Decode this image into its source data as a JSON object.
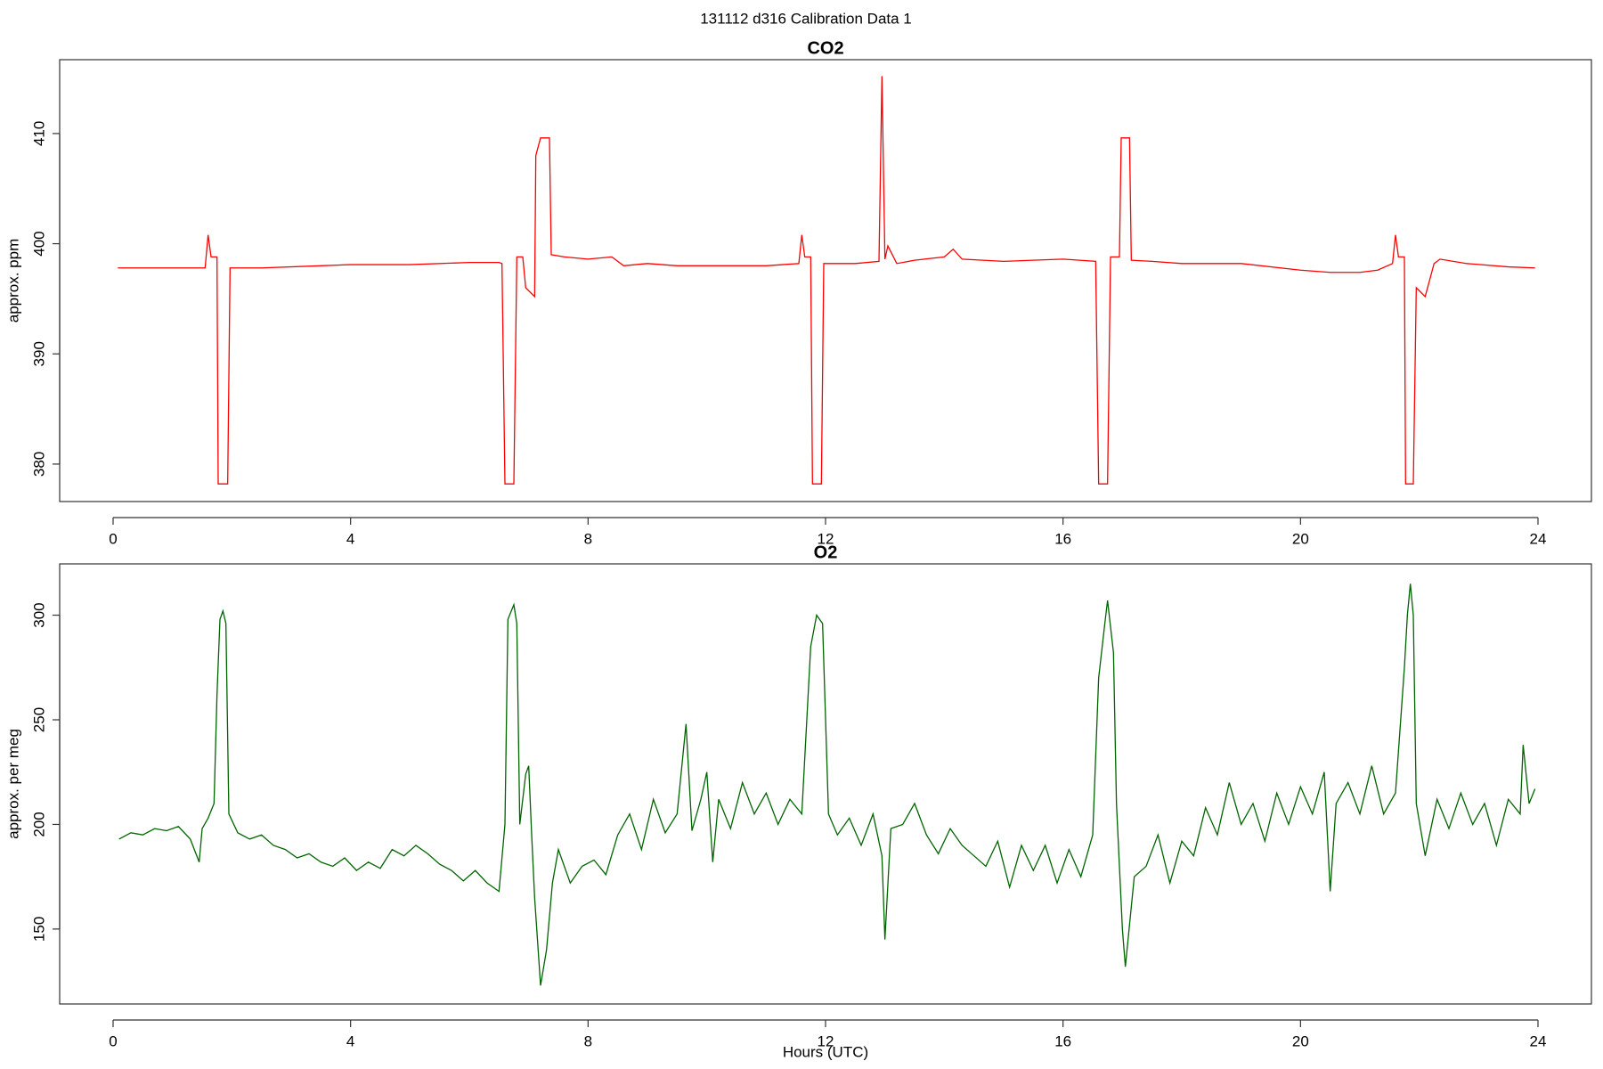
{
  "title": "131112   d316   Calibration Data 1",
  "chart_data": [
    {
      "type": "line",
      "title": "CO2",
      "ylabel": "approx. ppm",
      "x": [
        0.08,
        0.5,
        1.0,
        1.55,
        1.6,
        1.65,
        1.75,
        1.77,
        1.93,
        1.97,
        2.5,
        3.5,
        4.0,
        5.0,
        6.0,
        6.5,
        6.55,
        6.6,
        6.75,
        6.8,
        6.9,
        6.95,
        7.1,
        7.12,
        7.2,
        7.35,
        7.38,
        7.6,
        8.0,
        8.4,
        8.6,
        9.0,
        9.5,
        10.5,
        11.0,
        11.55,
        11.6,
        11.65,
        11.75,
        11.78,
        11.93,
        11.97,
        12.5,
        12.9,
        12.95,
        13.0,
        13.05,
        13.2,
        13.5,
        14.0,
        14.15,
        14.3,
        15.0,
        16.0,
        16.55,
        16.6,
        16.75,
        16.8,
        16.95,
        16.98,
        17.12,
        17.15,
        17.5,
        18.0,
        19.0,
        20.0,
        20.5,
        21.0,
        21.3,
        21.55,
        21.6,
        21.65,
        21.75,
        21.77,
        21.9,
        21.95,
        22.1,
        22.25,
        22.35,
        22.8,
        23.5,
        23.95
      ],
      "series": [
        {
          "color": "#ff0000",
          "values": [
            397.8,
            397.8,
            397.8,
            397.8,
            400.8,
            398.8,
            398.8,
            378.2,
            378.2,
            397.8,
            397.8,
            398.0,
            398.1,
            398.1,
            398.3,
            398.3,
            398.2,
            378.2,
            378.2,
            398.8,
            398.8,
            396,
            395.2,
            408,
            409.6,
            409.6,
            399,
            398.8,
            398.6,
            398.8,
            398,
            398.2,
            398,
            398,
            398,
            398.2,
            400.8,
            398.8,
            398.8,
            378.2,
            378.2,
            398.2,
            398.2,
            398.4,
            415.2,
            398.6,
            399.8,
            398.2,
            398.5,
            398.8,
            399.5,
            398.6,
            398.4,
            398.6,
            398.4,
            378.2,
            378.2,
            398.8,
            398.8,
            409.6,
            409.6,
            398.5,
            398.4,
            398.2,
            398.2,
            397.6,
            397.4,
            397.4,
            397.6,
            398.2,
            400.8,
            398.8,
            398.8,
            378.2,
            378.2,
            396,
            395.2,
            398.2,
            398.6,
            398.2,
            397.9,
            397.8
          ]
        }
      ],
      "xlim": [
        -0.9,
        24.9
      ],
      "ylim": [
        376.6,
        416.7
      ],
      "xticks": [
        0,
        4,
        8,
        12,
        16,
        20,
        24
      ],
      "yticks": [
        380,
        390,
        400,
        410
      ]
    },
    {
      "type": "line",
      "title": "O2",
      "ylabel": "approx. per meg",
      "xlabel": "Hours (UTC)",
      "x": [
        0.1,
        0.3,
        0.5,
        0.7,
        0.9,
        1.1,
        1.3,
        1.45,
        1.5,
        1.6,
        1.7,
        1.75,
        1.8,
        1.85,
        1.9,
        1.95,
        2.1,
        2.3,
        2.5,
        2.7,
        2.9,
        3.1,
        3.3,
        3.5,
        3.7,
        3.9,
        4.1,
        4.3,
        4.5,
        4.7,
        4.9,
        5.1,
        5.3,
        5.5,
        5.7,
        5.9,
        6.1,
        6.3,
        6.5,
        6.6,
        6.65,
        6.75,
        6.8,
        6.85,
        6.95,
        7.0,
        7.05,
        7.1,
        7.2,
        7.3,
        7.4,
        7.5,
        7.7,
        7.9,
        8.1,
        8.3,
        8.5,
        8.7,
        8.9,
        9.1,
        9.3,
        9.5,
        9.65,
        9.75,
        9.9,
        10.0,
        10.1,
        10.2,
        10.4,
        10.6,
        10.8,
        11.0,
        11.2,
        11.4,
        11.6,
        11.75,
        11.85,
        11.95,
        12.05,
        12.2,
        12.4,
        12.6,
        12.8,
        12.95,
        13.0,
        13.1,
        13.3,
        13.5,
        13.7,
        13.9,
        14.1,
        14.3,
        14.5,
        14.7,
        14.9,
        15.1,
        15.3,
        15.5,
        15.7,
        15.9,
        16.1,
        16.3,
        16.5,
        16.6,
        16.7,
        16.75,
        16.85,
        16.9,
        17.0,
        17.05,
        17.2,
        17.4,
        17.6,
        17.8,
        18.0,
        18.2,
        18.4,
        18.6,
        18.8,
        19.0,
        19.2,
        19.4,
        19.6,
        19.8,
        20.0,
        20.2,
        20.4,
        20.5,
        20.6,
        20.8,
        21.0,
        21.2,
        21.4,
        21.6,
        21.75,
        21.8,
        21.85,
        21.9,
        21.95,
        22.1,
        22.3,
        22.5,
        22.7,
        22.9,
        23.1,
        23.3,
        23.5,
        23.7,
        23.75,
        23.85,
        23.95
      ],
      "series": [
        {
          "color": "#006400",
          "values": [
            193,
            196,
            195,
            198,
            197,
            199,
            193,
            182,
            198,
            203,
            210,
            262,
            298,
            302,
            296,
            205,
            196,
            193,
            195,
            190,
            188,
            184,
            186,
            182,
            180,
            184,
            178,
            182,
            179,
            188,
            185,
            190,
            186,
            181,
            178,
            173,
            178,
            172,
            168,
            200,
            298,
            305,
            296,
            200,
            224,
            228,
            195,
            165,
            123,
            140,
            172,
            188,
            172,
            180,
            183,
            176,
            195,
            205,
            188,
            212,
            196,
            205,
            248,
            197,
            212,
            225,
            182,
            212,
            198,
            220,
            205,
            215,
            200,
            212,
            205,
            285,
            300,
            296,
            205,
            195,
            203,
            190,
            205,
            185,
            145,
            198,
            200,
            210,
            195,
            186,
            198,
            190,
            185,
            180,
            192,
            170,
            190,
            178,
            190,
            172,
            188,
            175,
            195,
            270,
            295,
            307,
            282,
            210,
            150,
            132,
            175,
            180,
            195,
            172,
            192,
            185,
            208,
            195,
            220,
            200,
            210,
            192,
            215,
            200,
            218,
            205,
            225,
            168,
            210,
            220,
            205,
            228,
            205,
            215,
            275,
            300,
            315,
            300,
            210,
            185,
            212,
            198,
            215,
            200,
            210,
            190,
            212,
            205,
            238,
            210,
            217
          ]
        }
      ],
      "xlim": [
        -0.9,
        24.9
      ],
      "ylim": [
        114.2,
        324.5
      ],
      "xticks": [
        0,
        4,
        8,
        12,
        16,
        20,
        24
      ],
      "yticks": [
        150,
        200,
        250,
        300
      ]
    }
  ]
}
